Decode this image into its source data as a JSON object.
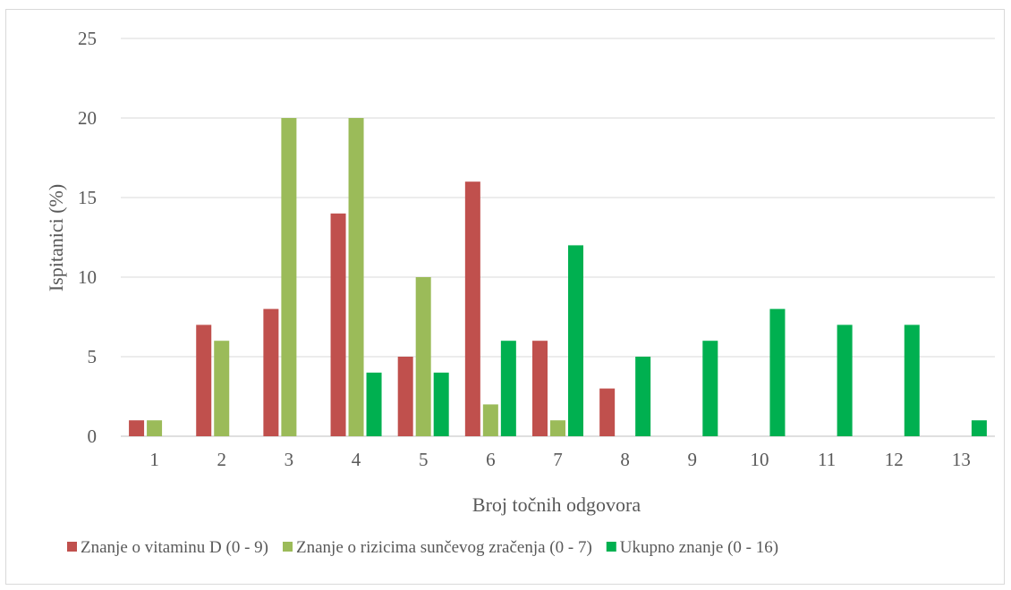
{
  "chart_data": {
    "type": "bar",
    "xlabel": "Broj točnih odgovora",
    "ylabel": "Ispitanici (%)",
    "ylim": [
      0,
      25
    ],
    "yticks": [
      0,
      5,
      10,
      15,
      20,
      25
    ],
    "grid": true,
    "legend_position": "bottom",
    "categories": [
      "1",
      "2",
      "3",
      "4",
      "5",
      "6",
      "7",
      "8",
      "9",
      "10",
      "11",
      "12",
      "13"
    ],
    "series": [
      {
        "name": "Znanje o vitaminu D (0 - 9)",
        "color": "#c0504d",
        "values": [
          1,
          7,
          8,
          14,
          5,
          16,
          6,
          3,
          null,
          null,
          null,
          null,
          null
        ]
      },
      {
        "name": "Znanje o rizicima sunčevog zračenja (0 - 7)",
        "color": "#9bbb59",
        "values": [
          1,
          6,
          20,
          20,
          10,
          2,
          1,
          null,
          null,
          null,
          null,
          null,
          null
        ]
      },
      {
        "name": "Ukupno znanje (0 - 16)",
        "color": "#00b050",
        "values": [
          null,
          null,
          null,
          4,
          4,
          6,
          12,
          5,
          6,
          8,
          7,
          7,
          1
        ]
      }
    ]
  }
}
